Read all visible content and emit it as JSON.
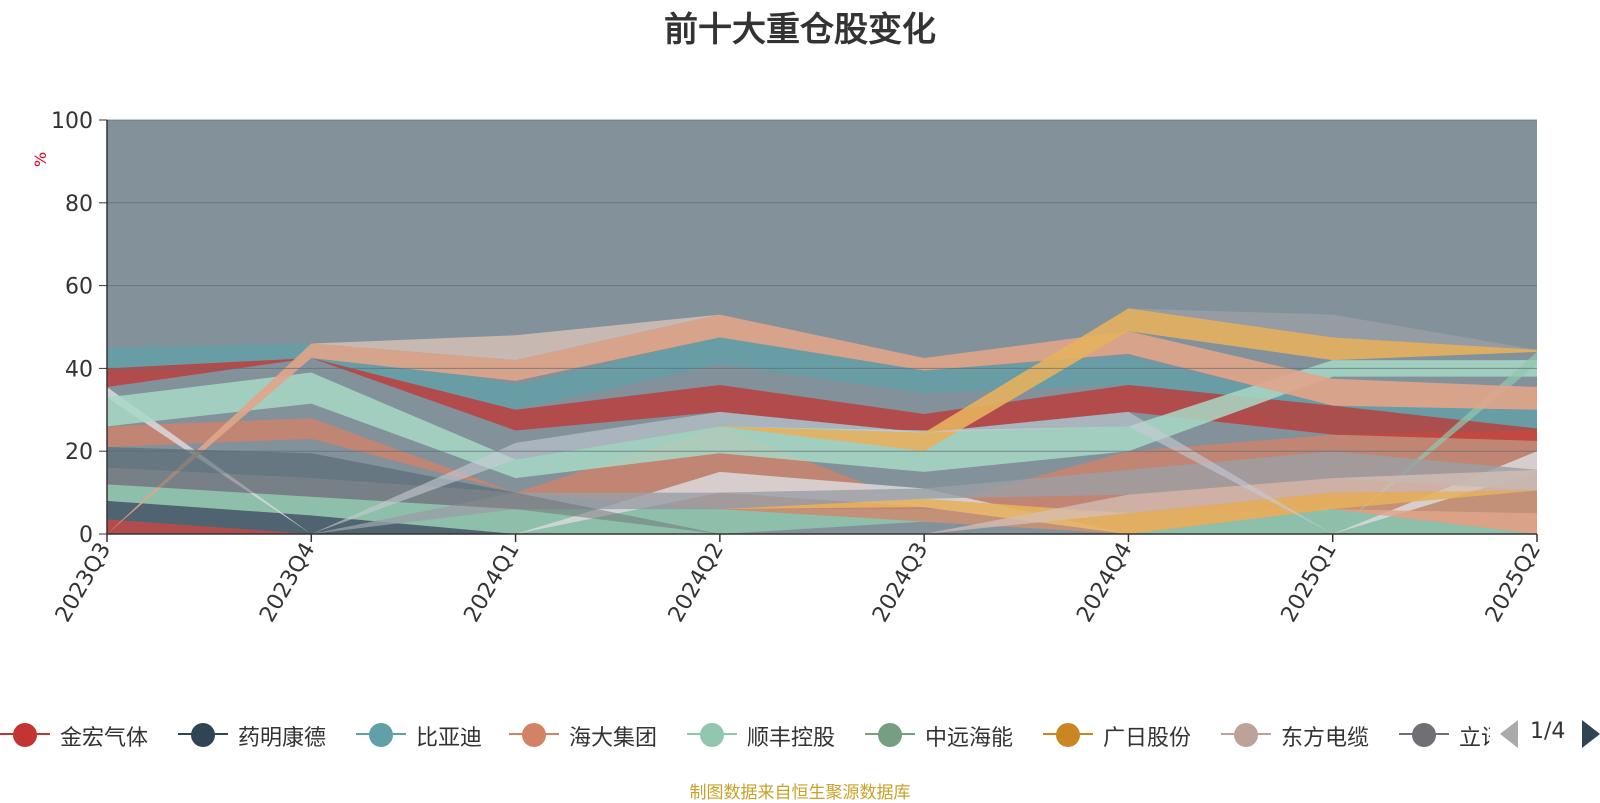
{
  "chart_data": {
    "type": "area",
    "title": "前十大重仓股变化",
    "ylabel": "%",
    "ylim": [
      0,
      100
    ],
    "yticks": [
      0,
      20,
      40,
      60,
      80,
      100
    ],
    "categories": [
      "2023Q3",
      "2023Q4",
      "2024Q1",
      "2024Q2",
      "2024Q3",
      "2024Q4",
      "2025Q1",
      "2025Q2"
    ],
    "grid": true,
    "background_color": "#83919b",
    "layers": [
      {
        "color": "#c23531",
        "opacity": 0.75,
        "upper": [
          3.5,
          0,
          0,
          0,
          0,
          0,
          0,
          0
        ],
        "lower": [
          0,
          0,
          0,
          0,
          0,
          0,
          0,
          0
        ]
      },
      {
        "color": "#2f4554",
        "opacity": 0.6,
        "upper": [
          8,
          4.5,
          0,
          0,
          0,
          0,
          0,
          0
        ],
        "lower": [
          3.5,
          0,
          0,
          0,
          0,
          0,
          0,
          0
        ]
      },
      {
        "color": "#91c7ae",
        "opacity": 0.85,
        "upper": [
          12,
          9,
          6,
          6,
          6,
          5.5,
          6,
          10.5
        ],
        "lower": [
          8,
          4.5,
          0,
          0,
          3,
          0,
          0,
          0
        ]
      },
      {
        "color": "#d48265",
        "opacity": 0.75,
        "upper": [
          26,
          28,
          10,
          26,
          6.5,
          20,
          24,
          25
        ],
        "lower": [
          21,
          23,
          10,
          6,
          3,
          0,
          6,
          0
        ]
      },
      {
        "color": "#d9d9dc",
        "opacity": 0.85,
        "upper": [
          35.5,
          0,
          0,
          15,
          11,
          0,
          0,
          20
        ],
        "lower": [
          33,
          0,
          0,
          10,
          6.5,
          0,
          0,
          15
        ]
      },
      {
        "color": "#61a0a8",
        "opacity": 0.8,
        "upper": [
          45,
          46,
          36,
          47.5,
          39.5,
          43,
          31,
          30
        ],
        "lower": [
          40,
          42.5,
          30,
          41,
          34,
          36,
          24,
          25
        ]
      },
      {
        "color": "#c23531",
        "opacity": 0.75,
        "upper": [
          40,
          42.5,
          30,
          36,
          29,
          36,
          31,
          25.5
        ],
        "lower": [
          35.5,
          42.5,
          25,
          29.5,
          24.5,
          29.5,
          24,
          22.5
        ]
      },
      {
        "color": "#a8d8c6",
        "opacity": 0.85,
        "upper": [
          33,
          39,
          18,
          26,
          25,
          26,
          42,
          42
        ],
        "lower": [
          26,
          31.5,
          13.5,
          19.5,
          15,
          20,
          38,
          38
        ]
      },
      {
        "color": "#91c7ae",
        "opacity": 0.7,
        "upper": [
          0,
          0,
          0,
          0,
          0,
          0,
          0,
          44
        ],
        "lower": [
          0,
          0,
          0,
          0,
          0,
          0,
          0,
          41
        ]
      },
      {
        "color": "#e0a58a",
        "opacity": 0.9,
        "upper": [
          0,
          46,
          42,
          53,
          42.5,
          49,
          37.5,
          35.5
        ],
        "lower": [
          0,
          42.5,
          37,
          47.5,
          39.5,
          43.5,
          31,
          30
        ]
      },
      {
        "color": "#d4bfb5",
        "opacity": 0.85,
        "upper": [
          0,
          46,
          48,
          53,
          0,
          0,
          0,
          0
        ],
        "lower": [
          0,
          46,
          42,
          53,
          0,
          0,
          0,
          0
        ]
      },
      {
        "color": "#e6b15f",
        "opacity": 0.9,
        "upper": [
          0,
          0,
          0,
          26,
          24.5,
          54.5,
          47.5,
          44.5
        ],
        "lower": [
          0,
          0,
          0,
          26,
          20,
          49,
          42,
          44
        ]
      },
      {
        "color": "#e6b15f",
        "opacity": 0.9,
        "upper": [
          0,
          0,
          0,
          6,
          8.5,
          5,
          10,
          10.5
        ],
        "lower": [
          0,
          0,
          0,
          6,
          6.5,
          0,
          6,
          10.5
        ]
      },
      {
        "color": "#9a9fa5",
        "opacity": 0.8,
        "upper": [
          0,
          0,
          0,
          0,
          0,
          54.5,
          53,
          44.5
        ],
        "lower": [
          0,
          0,
          0,
          0,
          0,
          54.5,
          47.5,
          44.5
        ]
      },
      {
        "color": "#9a9fa5",
        "opacity": 0.8,
        "upper": [
          0,
          0,
          10,
          10,
          11,
          15.5,
          20,
          15.5
        ],
        "lower": [
          0,
          0,
          6,
          6,
          8.5,
          9.5,
          13.5,
          10.5
        ]
      },
      {
        "color": "#d4bfb5",
        "opacity": 0.75,
        "upper": [
          0,
          0,
          0,
          0,
          0,
          9.5,
          13.5,
          15.5
        ],
        "lower": [
          0,
          0,
          0,
          0,
          0,
          5,
          10,
          10.5
        ]
      },
      {
        "color": "#e0a58a",
        "opacity": 0.85,
        "upper": [
          0,
          0,
          0,
          0,
          0,
          0,
          6,
          5
        ],
        "lower": [
          0,
          0,
          0,
          0,
          0,
          0,
          6,
          0
        ]
      },
      {
        "color": "#546570",
        "opacity": 0.6,
        "upper": [
          21,
          19.5,
          10,
          0,
          0,
          0,
          0,
          0
        ],
        "lower": [
          16,
          13.5,
          10,
          0,
          0,
          0,
          0,
          0
        ]
      },
      {
        "color": "#6e7074",
        "opacity": 0.5,
        "upper": [
          16,
          13.5,
          10,
          0,
          0,
          0,
          0,
          0
        ],
        "lower": [
          12,
          9,
          6,
          0,
          0,
          0,
          0,
          0
        ]
      },
      {
        "color": "#c4ccd3",
        "opacity": 0.6,
        "upper": [
          0,
          0,
          22,
          29.5,
          24.5,
          29.5,
          0,
          0
        ],
        "lower": [
          0,
          0,
          18,
          26,
          24.5,
          26,
          0,
          0
        ]
      }
    ],
    "legend": {
      "placement": "bottom",
      "page": "1/4",
      "items": [
        {
          "name": "金宏气体",
          "color": "#c23531"
        },
        {
          "name": "药明康德",
          "color": "#2f4554"
        },
        {
          "name": "比亚迪",
          "color": "#61a0a8"
        },
        {
          "name": "海大集团",
          "color": "#d48265"
        },
        {
          "name": "顺丰控股",
          "color": "#91c7ae"
        },
        {
          "name": "中远海能",
          "color": "#749f83"
        },
        {
          "name": "广日股份",
          "color": "#ca8622"
        },
        {
          "name": "东方电缆",
          "color": "#bda29a"
        },
        {
          "name": "立讯",
          "color": "#6e7074"
        }
      ]
    }
  },
  "source_note": "制图数据来自恒生聚源数据库",
  "y_unit": "%"
}
